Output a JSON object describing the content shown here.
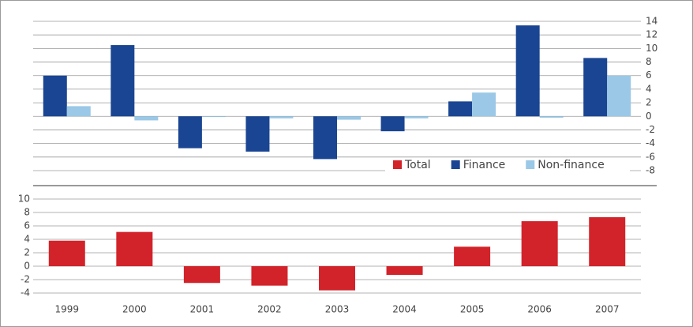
{
  "chart_data": [
    {
      "type": "bar",
      "grid": true,
      "legend": "bottom-right",
      "y2lim": [
        -8,
        14
      ],
      "y2ticks": [
        -8,
        -6,
        -4,
        -2,
        0,
        2,
        4,
        6,
        8,
        10,
        12,
        14
      ],
      "series": [
        {
          "name": "Finance",
          "color": "#1a4592",
          "axis": "y2",
          "values": [
            6,
            10.5,
            -4.7,
            -5.2,
            -6.3,
            -2.2,
            2.2,
            13.4,
            8.6
          ]
        },
        {
          "name": "Non-finance",
          "color": "#9ac8e6",
          "axis": "y2",
          "values": [
            1.5,
            -0.6,
            -0.1,
            -0.3,
            -0.5,
            -0.3,
            3.5,
            -0.2,
            6.0
          ]
        }
      ]
    },
    {
      "type": "bar",
      "grid": true,
      "categories": [
        "1999",
        "2000",
        "2001",
        "2002",
        "2003",
        "2004",
        "2005",
        "2006",
        "2007"
      ],
      "ylim": [
        -4,
        10
      ],
      "yticks": [
        -4,
        -2,
        0,
        2,
        4,
        6,
        8,
        10
      ],
      "series": [
        {
          "name": "Total",
          "color": "#d2232a",
          "values": [
            3.8,
            5.1,
            -2.5,
            -2.9,
            -3.6,
            -1.3,
            2.9,
            6.7,
            7.3
          ]
        }
      ]
    }
  ]
}
